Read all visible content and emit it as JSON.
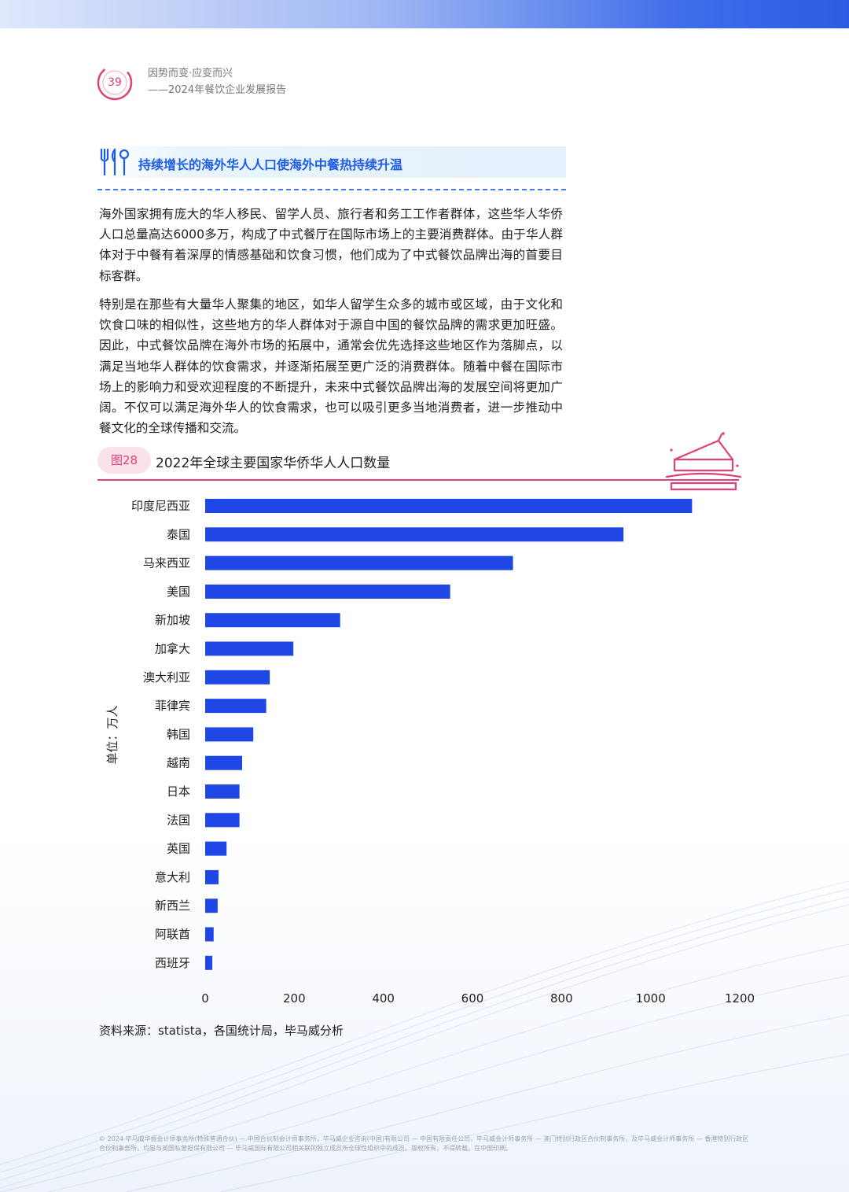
{
  "header": {
    "page_number": "39",
    "line1": "因势而变·应变而兴",
    "line2": "——2024年餐饮企业发展报告"
  },
  "section": {
    "title": "持续增长的海外华人人口使海外中餐热持续升温"
  },
  "body": {
    "paragraph1": "海外国家拥有庞大的华人移民、留学人员、旅行者和务工工作者群体，这些华人华侨人口总量高达6000多万，构成了中式餐厅在国际市场上的主要消费群体。由于华人群体对于中餐有着深厚的情感基础和饮食习惯，他们成为了中式餐饮品牌出海的首要目标客群。",
    "paragraph2": "特别是在那些有大量华人聚集的地区，如华人留学生众多的城市或区域，由于文化和饮食口味的相似性，这些地方的华人群体对于源自中国的餐饮品牌的需求更加旺盛。因此，中式餐饮品牌在海外市场的拓展中，通常会优先选择这些地区作为落脚点，以满足当地华人群体的饮食需求，并逐渐拓展至更广泛的消费群体。随着中餐在国际市场上的影响力和受欢迎程度的不断提升，未来中式餐饮品牌出海的发展空间将更加广阔。不仅可以满足海外华人的饮食需求，也可以吸引更多当地消费者，进一步推动中餐文化的全球传播和交流。"
  },
  "figure": {
    "badge": "图28",
    "title": "2022年全球主要国家华侨华人人口数量"
  },
  "chart_data": {
    "type": "bar",
    "orientation": "horizontal",
    "categories": [
      "印度尼西亚",
      "泰国",
      "马来西亚",
      "美国",
      "新加坡",
      "加拿大",
      "澳大利亚",
      "菲律宾",
      "韩国",
      "越南",
      "日本",
      "法国",
      "英国",
      "意大利",
      "新西兰",
      "阿联酋",
      "西班牙"
    ],
    "values": [
      1093,
      939,
      691,
      550,
      303,
      198,
      145,
      137,
      108,
      83,
      77,
      77,
      48,
      30,
      28,
      19,
      16
    ],
    "ylabel": "单位：万人",
    "xlim": [
      0,
      1200
    ],
    "xticks": [
      0,
      200,
      400,
      600,
      800,
      1000,
      1200
    ],
    "bar_color": "#1f47e5",
    "grid": false,
    "legend": "none"
  },
  "source": {
    "text": "资料来源：statista，各国统计局，毕马威分析"
  },
  "footer": {
    "text": "© 2024 毕马威华振会计师事务所(特殊普通合伙) — 中国合伙制会计师事务所，毕马威企业咨询(中国)有限公司 — 中国有限责任公司，毕马威会计师事务所 — 澳门特别行政区合伙制事务所，及毕马威会计师事务所 — 香港特别行政区合伙制事务所，均是与英国私营担保有限公司 — 毕马威国际有限公司相关联的独立成员所全球性组织中的成员。版权所有，不得转载。在中国印刷。"
  },
  "colors": {
    "accent_pink": "#e0407a",
    "accent_blue": "#1e5be6"
  }
}
